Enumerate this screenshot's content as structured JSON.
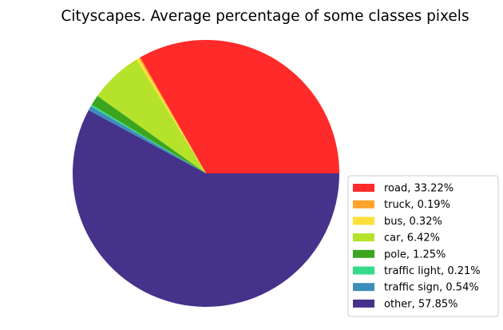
{
  "chart_data": {
    "type": "pie",
    "title": "Cityscapes. Average percentage of some classes pixels",
    "legend_position": "lower-right",
    "start_angle_deg": 0,
    "direction": "counterclockwise",
    "slices": [
      {
        "label": "road, 33.22%",
        "value": 33.22,
        "color": "#ff2a2a"
      },
      {
        "label": "truck, 0.19%",
        "value": 0.19,
        "color": "#ffa32a"
      },
      {
        "label": "bus, 0.32%",
        "value": 0.32,
        "color": "#fde13a"
      },
      {
        "label": "car, 6.42%",
        "value": 6.42,
        "color": "#b5e22a"
      },
      {
        "label": "pole, 1.25%",
        "value": 1.25,
        "color": "#3ba51f"
      },
      {
        "label": "traffic light, 0.21%",
        "value": 0.21,
        "color": "#35db8a"
      },
      {
        "label": "traffic sign, 0.54%",
        "value": 0.54,
        "color": "#3d8dbb"
      },
      {
        "label": "other, 57.85%",
        "value": 57.85,
        "color": "#45328a"
      }
    ]
  }
}
